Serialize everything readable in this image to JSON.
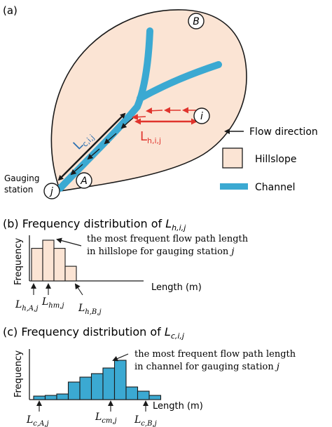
{
  "panel_a": {
    "label": "(a)",
    "basin_label": "B",
    "outlet_circle": "j",
    "point_a": "A",
    "point_i": "i",
    "gauging_line1": "Gauging",
    "gauging_line2": "station",
    "channel_length": {
      "main": "L",
      "sub": "c,i,j"
    },
    "hillslope_length": {
      "main": "L",
      "sub": "h,i,j"
    },
    "legend": {
      "flow_direction": "Flow direction",
      "hillslope": "Hillslope",
      "channel": "Channel"
    },
    "colors": {
      "basin_fill": "#fbe4d4",
      "channel": "#3ba9d2",
      "hillslope_arrow": "#e0342d",
      "channel_arrow": "#1a1a1a"
    }
  },
  "panel_b": {
    "title_prefix": "(b) Frequency distribution of ",
    "title_var": {
      "main": "L",
      "sub": "h,i,j"
    },
    "ylabel": "Frequency",
    "xlabel": "Length (m)",
    "annotation_line1": "the most frequent flow path length",
    "annotation_line2": "in hillslope for gauging station ",
    "annotation_var": "j",
    "marks": [
      {
        "main": "L",
        "sub": "h,A,j"
      },
      {
        "main": "L",
        "sub": "hm,j"
      },
      {
        "main": "L",
        "sub": "h,B,j"
      }
    ],
    "bar_color": "#fbe4d4"
  },
  "panel_c": {
    "title_prefix": "(c) Frequency distribution of ",
    "title_var": {
      "main": "L",
      "sub": "c,i,j"
    },
    "ylabel": "Frequency",
    "xlabel": "Length (m)",
    "annotation_line1": "the most frequent flow path length",
    "annotation_line2": "in channel for gauging station ",
    "annotation_var": "j",
    "marks": [
      {
        "main": "L",
        "sub": "c,A,j"
      },
      {
        "main": "L",
        "sub": "cm,j"
      },
      {
        "main": "L",
        "sub": "c,B,j"
      }
    ],
    "bar_color": "#3ba9d2"
  },
  "chart_data": [
    {
      "type": "bar",
      "title": "(b) Frequency distribution of L h,i,j",
      "xlabel": "Length (m)",
      "ylabel": "Frequency",
      "values": [
        4,
        5,
        4,
        1.8
      ]
    },
    {
      "type": "bar",
      "title": "(c) Frequency distribution of L c,i,j",
      "xlabel": "Length (m)",
      "ylabel": "Frequency",
      "values": [
        0.5,
        0.6,
        0.8,
        2.5,
        3.2,
        3.7,
        4.5,
        5.6,
        1.8,
        1.2,
        0.6
      ]
    }
  ]
}
